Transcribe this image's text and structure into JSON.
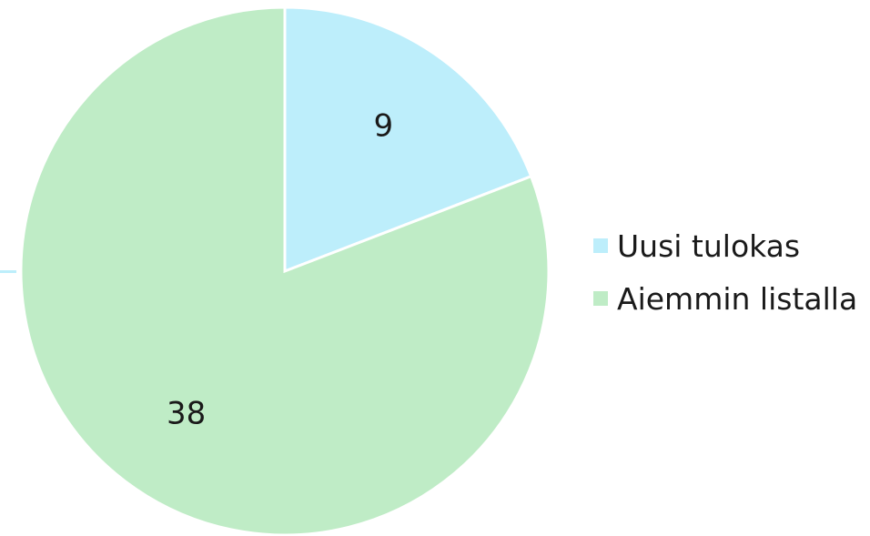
{
  "chart_data": {
    "type": "pie",
    "categories": [
      "Uusi tulokas",
      "Aiemmin listalla"
    ],
    "values": [
      9,
      38
    ],
    "colors": [
      "#bdeefb",
      "#bfecc6"
    ],
    "start_angle_deg": 0,
    "direction": "clockwise",
    "legend": {
      "position": "right",
      "entries": [
        "Uusi tulokas",
        "Aiemmin listalla"
      ]
    },
    "data_labels": [
      "9",
      "38"
    ]
  }
}
